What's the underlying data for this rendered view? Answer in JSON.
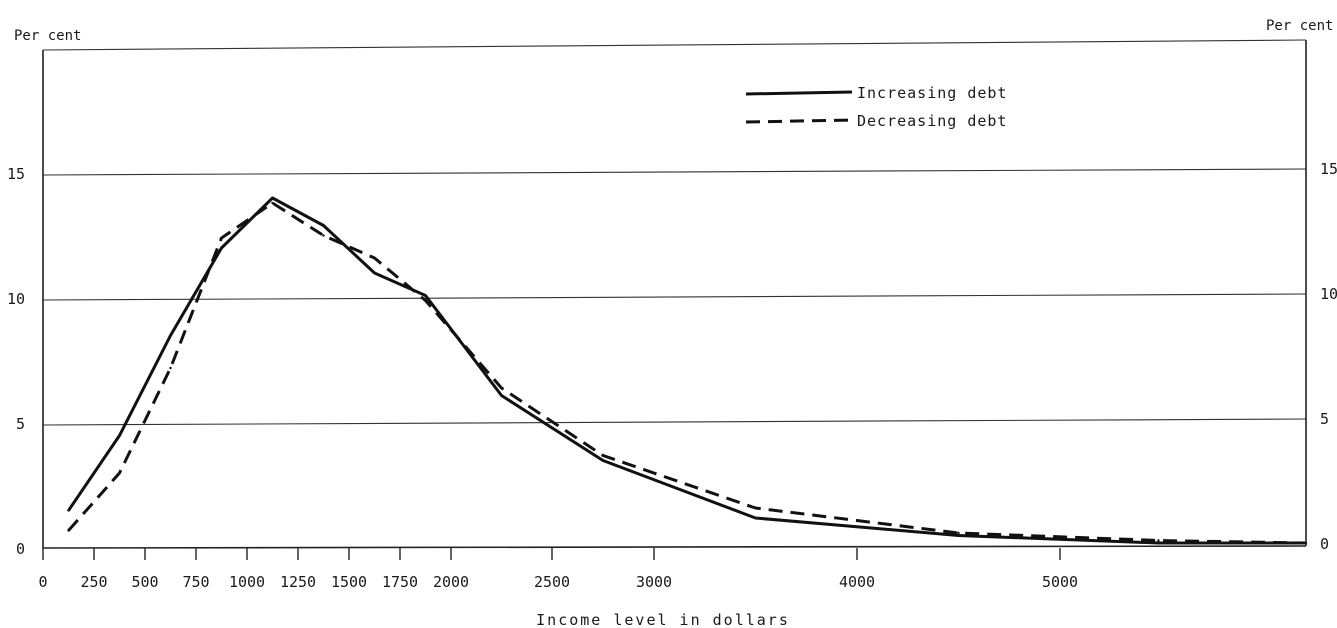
{
  "chart_data": {
    "type": "line",
    "xlabel": "Income level in dollars",
    "ylabel_left": "Per cent",
    "ylabel_right": "Per cent",
    "x_ticks": [
      0,
      250,
      500,
      750,
      1000,
      1250,
      1500,
      1750,
      2000,
      2500,
      3000,
      4000,
      5000
    ],
    "x_tick_labels": [
      "0",
      "250",
      "500",
      "750",
      "1000",
      "1250",
      "1500",
      "1750",
      "2000",
      "2500",
      "3000",
      "4000",
      "5000"
    ],
    "y_ticks": [
      0,
      5,
      10,
      15
    ],
    "y_tick_labels": [
      "0",
      "5",
      "10",
      "15"
    ],
    "ylim": [
      0,
      20
    ],
    "xlim": [
      0,
      6250
    ],
    "grid": "horizontal",
    "legend_position": "top-center",
    "series": [
      {
        "name": "Increasing debt",
        "style": "solid",
        "x": [
          125,
          375,
          625,
          875,
          1125,
          1375,
          1625,
          1875,
          2250,
          2750,
          3500,
          4500,
          5500,
          6250
        ],
        "values": [
          1.5,
          4.5,
          8.5,
          12.0,
          14.0,
          12.9,
          11.0,
          10.1,
          6.1,
          3.5,
          1.2,
          0.5,
          0.2,
          0.2
        ]
      },
      {
        "name": "Decreasing debt",
        "style": "dashed",
        "x": [
          125,
          375,
          625,
          875,
          1125,
          1375,
          1625,
          1875,
          2250,
          2750,
          3500,
          4500,
          5500,
          6250
        ],
        "values": [
          0.7,
          3.0,
          7.2,
          12.4,
          13.8,
          12.5,
          11.6,
          9.9,
          6.4,
          3.7,
          1.6,
          0.6,
          0.3,
          0.2
        ]
      }
    ]
  }
}
